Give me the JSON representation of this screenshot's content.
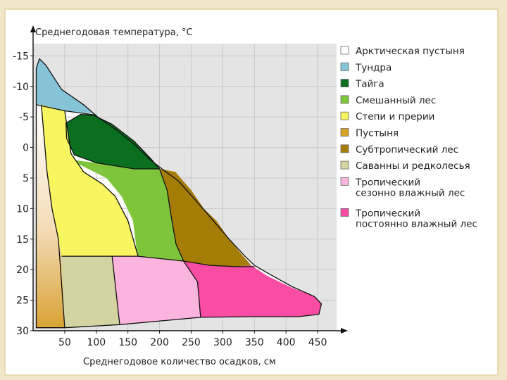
{
  "chart_data": {
    "type": "area",
    "title": "",
    "ylabel": "Среднегодовая температура, °C",
    "xlabel": "Среднегодовое количество осадков, см",
    "x_ticks": [
      50,
      100,
      150,
      200,
      250,
      300,
      350,
      400,
      450
    ],
    "y_ticks": [
      -15,
      -10,
      -5,
      0,
      5,
      10,
      15,
      20,
      25,
      30
    ],
    "xlim": [
      0,
      480
    ],
    "ylim": [
      -17,
      30
    ],
    "y_inverted": true,
    "grid": true,
    "legend_position": "right",
    "series": [
      {
        "name": "Арктическая пустыня",
        "color": "#ffffff"
      },
      {
        "name": "Тундра",
        "color": "#85c3d6"
      },
      {
        "name": "Тайга",
        "color": "#0a6f1e"
      },
      {
        "name": "Смешанный лес",
        "color": "#7ec53c"
      },
      {
        "name": "Степи и прерии",
        "color": "#f7f560"
      },
      {
        "name": "Пустыня",
        "color": "#d4a326"
      },
      {
        "name": "Субтропический лес",
        "color": "#a57c05"
      },
      {
        "name": "Саванны и редколесья",
        "color": "#d3d4a2"
      },
      {
        "name": "Тропический\nсезонно влажный лес",
        "color": "#fbb4de"
      },
      {
        "name": "Тропический\nпостоянно влажный лес",
        "color": "#f84da2"
      }
    ],
    "regions": [
      {
        "color": "#85c3d6",
        "points": [
          [
            5,
            -7
          ],
          [
            5,
            -13
          ],
          [
            10,
            -14.5
          ],
          [
            20,
            -13.5
          ],
          [
            45,
            -9.5
          ],
          [
            80,
            -7
          ],
          [
            102,
            -5
          ],
          [
            100,
            -5.5
          ],
          [
            50,
            -6
          ],
          [
            5,
            -7
          ]
        ]
      },
      {
        "color": "#0a6f1e",
        "points": [
          [
            52,
            -4
          ],
          [
            75,
            -5.4
          ],
          [
            95,
            -5.3
          ],
          [
            125,
            -3.8
          ],
          [
            160,
            -1
          ],
          [
            185,
            1.7
          ],
          [
            200,
            3.5
          ],
          [
            160,
            3.5
          ],
          [
            100,
            2.5
          ],
          [
            65,
            1.2
          ],
          [
            53,
            -1.5
          ]
        ]
      },
      {
        "color": "#7ec53c",
        "points": [
          [
            58,
            2
          ],
          [
            100,
            2.5
          ],
          [
            160,
            3.5
          ],
          [
            200,
            3.5
          ],
          [
            205,
            5
          ],
          [
            212,
            7
          ],
          [
            218,
            11
          ],
          [
            226,
            15.8
          ],
          [
            238,
            18.6
          ],
          [
            165,
            17.8
          ],
          [
            158,
            12
          ],
          [
            140,
            8
          ],
          [
            116,
            5
          ]
        ]
      },
      {
        "color": "#f7f560",
        "points": [
          [
            13,
            -7
          ],
          [
            50,
            -6
          ],
          [
            60,
            1
          ],
          [
            80,
            4
          ],
          [
            110,
            6
          ],
          [
            130,
            8
          ],
          [
            150,
            12
          ],
          [
            166,
            17.8
          ],
          [
            90,
            17.8
          ],
          [
            45,
            17.8
          ],
          [
            40,
            15
          ],
          [
            30,
            10
          ],
          [
            22,
            4
          ]
        ]
      },
      {
        "color": "#d4a326",
        "points": [
          [
            5,
            -7
          ],
          [
            13,
            -7
          ],
          [
            22,
            4
          ],
          [
            30,
            10
          ],
          [
            40,
            15
          ],
          [
            45,
            17.8
          ],
          [
            50,
            29.5
          ],
          [
            5,
            29.5
          ]
        ]
      },
      {
        "color": "#a57c05",
        "points": [
          [
            200,
            3.5
          ],
          [
            225,
            4
          ],
          [
            250,
            7
          ],
          [
            270,
            10
          ],
          [
            290,
            12
          ],
          [
            310,
            15
          ],
          [
            330,
            17.5
          ],
          [
            345,
            19.3
          ],
          [
            320,
            19.5
          ],
          [
            280,
            19.3
          ],
          [
            238,
            18.6
          ],
          [
            226,
            15.8
          ],
          [
            218,
            11
          ],
          [
            212,
            7
          ],
          [
            205,
            5
          ]
        ]
      },
      {
        "color": "#d3d4a2",
        "points": [
          [
            45,
            17.8
          ],
          [
            90,
            17.8
          ],
          [
            125,
            17.8
          ],
          [
            137,
            29
          ],
          [
            50,
            29.5
          ]
        ]
      },
      {
        "color": "#fbb4de",
        "points": [
          [
            125,
            17.8
          ],
          [
            166,
            17.8
          ],
          [
            238,
            18.6
          ],
          [
            260,
            22
          ],
          [
            265,
            27.8
          ],
          [
            137,
            29
          ]
        ]
      },
      {
        "color": "#f84da2",
        "points": [
          [
            238,
            18.6
          ],
          [
            280,
            19.3
          ],
          [
            320,
            19.5
          ],
          [
            345,
            19.3
          ],
          [
            370,
            21
          ],
          [
            410,
            23
          ],
          [
            445,
            24.4
          ],
          [
            456,
            25.5
          ],
          [
            452,
            27.2
          ],
          [
            420,
            27.7
          ],
          [
            350,
            27.7
          ],
          [
            290,
            27.8
          ],
          [
            265,
            27.8
          ],
          [
            260,
            22
          ]
        ]
      }
    ],
    "white_region": [
      [
        5,
        -7
      ],
      [
        5,
        -13
      ],
      [
        10,
        -14.5
      ],
      [
        20,
        -13.5
      ],
      [
        45,
        -9.5
      ],
      [
        80,
        -7
      ],
      [
        102,
        -5
      ],
      [
        130,
        -3
      ],
      [
        160,
        -0.5
      ],
      [
        185,
        2
      ],
      [
        205,
        3.6
      ],
      [
        230,
        5.5
      ],
      [
        260,
        9
      ],
      [
        285,
        12
      ],
      [
        310,
        15
      ],
      [
        335,
        17.8
      ],
      [
        350,
        19.3
      ],
      [
        375,
        20.8
      ],
      [
        410,
        22.8
      ],
      [
        445,
        24.4
      ],
      [
        456,
        25.6
      ],
      [
        452,
        27.3
      ],
      [
        420,
        27.7
      ],
      [
        350,
        27.7
      ],
      [
        265,
        27.8
      ],
      [
        137,
        29
      ],
      [
        50,
        29.5
      ],
      [
        5,
        29.5
      ]
    ],
    "boundaries": [
      [
        [
          5,
          -7
        ],
        [
          50,
          -6
        ],
        [
          100,
          -5.3
        ]
      ],
      [
        [
          52,
          -4
        ],
        [
          75,
          -5.4
        ],
        [
          95,
          -5.3
        ],
        [
          125,
          -3.8
        ],
        [
          160,
          -1
        ],
        [
          185,
          1.7
        ],
        [
          200,
          3.5
        ]
      ],
      [
        [
          52,
          -4
        ],
        [
          53,
          -1.5
        ],
        [
          65,
          1.2
        ],
        [
          100,
          2.5
        ],
        [
          160,
          3.5
        ],
        [
          200,
          3.5
        ]
      ],
      [
        [
          13,
          -7
        ],
        [
          22,
          4
        ],
        [
          30,
          10
        ],
        [
          40,
          15
        ],
        [
          50,
          29.5
        ]
      ],
      [
        [
          50,
          -6
        ],
        [
          60,
          1
        ],
        [
          80,
          4
        ],
        [
          110,
          6
        ],
        [
          130,
          8
        ],
        [
          150,
          12
        ],
        [
          166,
          17.8
        ]
      ],
      [
        [
          200,
          3.5
        ],
        [
          205,
          5
        ],
        [
          212,
          7
        ],
        [
          218,
          11
        ],
        [
          226,
          15.8
        ],
        [
          238,
          18.6
        ]
      ],
      [
        [
          45,
          17.8
        ],
        [
          125,
          17.8
        ],
        [
          166,
          17.8
        ],
        [
          238,
          18.6
        ],
        [
          280,
          19.3
        ],
        [
          320,
          19.5
        ],
        [
          350,
          19.5
        ]
      ],
      [
        [
          125,
          17.8
        ],
        [
          137,
          29
        ]
      ],
      [
        [
          238,
          18.6
        ],
        [
          260,
          22
        ],
        [
          265,
          27.8
        ]
      ]
    ]
  }
}
